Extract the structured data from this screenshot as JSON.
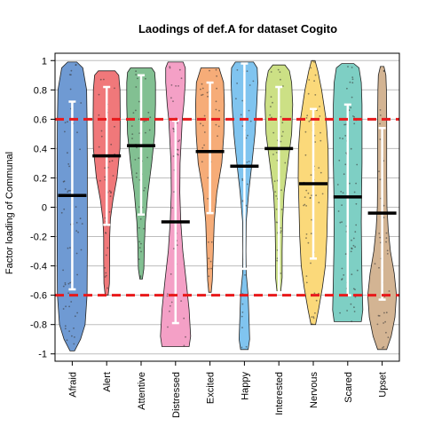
{
  "chart_data": {
    "type": "violin",
    "title": "Laodings of def.A for dataset Cogito",
    "xlabel": "",
    "ylabel": "Factor loading of Communal",
    "ylim": [
      -1.05,
      1.05
    ],
    "yticks": [
      -1,
      -0.8,
      -0.6,
      -0.4,
      -0.2,
      0,
      0.2,
      0.4,
      0.6,
      0.8,
      1
    ],
    "ytick_labels": [
      "-1",
      "-0.8",
      "-0.6",
      "-0.4",
      "-0.2",
      "0",
      "0.2",
      "0.4",
      "0.6",
      "0.8",
      "1"
    ],
    "grid": true,
    "reference_lines": [
      0.6,
      -0.6
    ],
    "reference_line_color": "#e8191b",
    "categories": [
      {
        "name": "Afraid",
        "color": "#6f9ad3",
        "min": -0.98,
        "max": 0.99,
        "mean": 0.08,
        "ci": [
          -0.56,
          0.72
        ],
        "profile": [
          [
            -0.98,
            0.15
          ],
          [
            -0.9,
            0.55
          ],
          [
            -0.8,
            0.85
          ],
          [
            -0.6,
            0.98
          ],
          [
            -0.3,
            1.0
          ],
          [
            0,
            1.0
          ],
          [
            0.3,
            1.0
          ],
          [
            0.6,
            0.98
          ],
          [
            0.8,
            0.95
          ],
          [
            0.95,
            0.7
          ],
          [
            0.99,
            0.3
          ]
        ]
      },
      {
        "name": "Alert",
        "color": "#f0787a",
        "min": -0.6,
        "max": 0.93,
        "mean": 0.35,
        "ci": [
          -0.12,
          0.82
        ],
        "profile": [
          [
            -0.6,
            0.1
          ],
          [
            -0.52,
            0.18
          ],
          [
            -0.35,
            0.2
          ],
          [
            -0.2,
            0.2
          ],
          [
            -0.08,
            0.25
          ],
          [
            0.05,
            0.42
          ],
          [
            0.2,
            0.68
          ],
          [
            0.4,
            0.88
          ],
          [
            0.6,
            0.9
          ],
          [
            0.8,
            0.88
          ],
          [
            0.9,
            0.8
          ],
          [
            0.93,
            0.55
          ]
        ]
      },
      {
        "name": "Attentive",
        "color": "#82c092",
        "min": -0.49,
        "max": 0.95,
        "mean": 0.42,
        "ci": [
          -0.05,
          0.9
        ],
        "profile": [
          [
            -0.49,
            0.08
          ],
          [
            -0.42,
            0.18
          ],
          [
            -0.25,
            0.22
          ],
          [
            -0.1,
            0.28
          ],
          [
            0.1,
            0.45
          ],
          [
            0.3,
            0.7
          ],
          [
            0.5,
            0.9
          ],
          [
            0.7,
            0.95
          ],
          [
            0.85,
            0.95
          ],
          [
            0.92,
            0.9
          ],
          [
            0.95,
            0.7
          ]
        ]
      },
      {
        "name": "Distressed",
        "color": "#f4a0c6",
        "min": -0.95,
        "max": 0.99,
        "mean": -0.1,
        "ci": [
          -0.79,
          0.59
        ],
        "profile": [
          [
            -0.95,
            0.9
          ],
          [
            -0.88,
            1.0
          ],
          [
            -0.7,
            0.9
          ],
          [
            -0.5,
            0.7
          ],
          [
            -0.3,
            0.48
          ],
          [
            -0.1,
            0.35
          ],
          [
            0.1,
            0.28
          ],
          [
            0.3,
            0.3
          ],
          [
            0.5,
            0.4
          ],
          [
            0.6,
            0.45
          ],
          [
            0.7,
            0.55
          ],
          [
            0.85,
            0.65
          ],
          [
            0.95,
            0.65
          ],
          [
            0.99,
            0.5
          ]
        ]
      },
      {
        "name": "Excited",
        "color": "#f6ac78",
        "min": -0.58,
        "max": 0.95,
        "mean": 0.38,
        "ci": [
          -0.04,
          0.85
        ],
        "profile": [
          [
            -0.58,
            0.08
          ],
          [
            -0.5,
            0.15
          ],
          [
            -0.3,
            0.22
          ],
          [
            -0.1,
            0.28
          ],
          [
            0.1,
            0.45
          ],
          [
            0.3,
            0.78
          ],
          [
            0.5,
            0.92
          ],
          [
            0.7,
            0.95
          ],
          [
            0.85,
            0.9
          ],
          [
            0.95,
            0.6
          ]
        ]
      },
      {
        "name": "Happy",
        "color": "#80c4ef",
        "min": -0.97,
        "max": 0.99,
        "mean": 0.28,
        "ci": [
          -0.42,
          0.98
        ],
        "profile": [
          [
            -0.97,
            0.25
          ],
          [
            -0.9,
            0.35
          ],
          [
            -0.75,
            0.3
          ],
          [
            -0.6,
            0.25
          ],
          [
            -0.45,
            0.12
          ],
          [
            -0.3,
            0.1
          ],
          [
            -0.1,
            0.12
          ],
          [
            0.1,
            0.28
          ],
          [
            0.3,
            0.5
          ],
          [
            0.5,
            0.7
          ],
          [
            0.7,
            0.82
          ],
          [
            0.85,
            0.88
          ],
          [
            0.95,
            0.85
          ],
          [
            0.99,
            0.6
          ]
        ]
      },
      {
        "name": "Interested",
        "color": "#cce085",
        "min": -0.58,
        "max": 0.97,
        "mean": 0.4,
        "ci": [
          -0.58,
          0.82
        ],
        "profile": [
          [
            -0.58,
            0.12
          ],
          [
            -0.48,
            0.22
          ],
          [
            -0.3,
            0.22
          ],
          [
            -0.1,
            0.25
          ],
          [
            0.1,
            0.35
          ],
          [
            0.3,
            0.6
          ],
          [
            0.5,
            0.85
          ],
          [
            0.7,
            0.92
          ],
          [
            0.85,
            0.85
          ],
          [
            0.93,
            0.7
          ],
          [
            0.97,
            0.4
          ]
        ]
      },
      {
        "name": "Nervous",
        "color": "#fbd97a",
        "min": -0.8,
        "max": 1.0,
        "mean": 0.16,
        "ci": [
          -0.35,
          0.67
        ],
        "profile": [
          [
            -0.8,
            0.15
          ],
          [
            -0.7,
            0.35
          ],
          [
            -0.55,
            0.6
          ],
          [
            -0.4,
            0.8
          ],
          [
            -0.2,
            0.9
          ],
          [
            0,
            0.95
          ],
          [
            0.2,
            1.0
          ],
          [
            0.4,
            0.98
          ],
          [
            0.6,
            0.85
          ],
          [
            0.8,
            0.55
          ],
          [
            0.93,
            0.3
          ],
          [
            1.0,
            0.12
          ]
        ]
      },
      {
        "name": "Scared",
        "color": "#7ecfc4",
        "min": -0.78,
        "max": 0.98,
        "mean": 0.07,
        "ci": [
          -0.6,
          0.7
        ],
        "profile": [
          [
            -0.78,
            0.9
          ],
          [
            -0.7,
            1.0
          ],
          [
            -0.5,
            0.95
          ],
          [
            -0.3,
            0.92
          ],
          [
            -0.1,
            0.9
          ],
          [
            0.1,
            0.92
          ],
          [
            0.3,
            0.95
          ],
          [
            0.5,
            0.95
          ],
          [
            0.7,
            0.95
          ],
          [
            0.85,
            0.9
          ],
          [
            0.95,
            0.75
          ],
          [
            0.98,
            0.4
          ]
        ]
      },
      {
        "name": "Upset",
        "color": "#d3b493",
        "min": -0.97,
        "max": 0.96,
        "mean": -0.04,
        "ci": [
          -0.63,
          0.54
        ],
        "profile": [
          [
            -0.97,
            0.3
          ],
          [
            -0.88,
            0.6
          ],
          [
            -0.75,
            0.85
          ],
          [
            -0.6,
            0.95
          ],
          [
            -0.45,
            0.8
          ],
          [
            -0.3,
            0.55
          ],
          [
            -0.15,
            0.4
          ],
          [
            0,
            0.32
          ],
          [
            0.2,
            0.3
          ],
          [
            0.4,
            0.3
          ],
          [
            0.6,
            0.3
          ],
          [
            0.8,
            0.28
          ],
          [
            0.9,
            0.25
          ],
          [
            0.96,
            0.12
          ]
        ]
      }
    ]
  }
}
